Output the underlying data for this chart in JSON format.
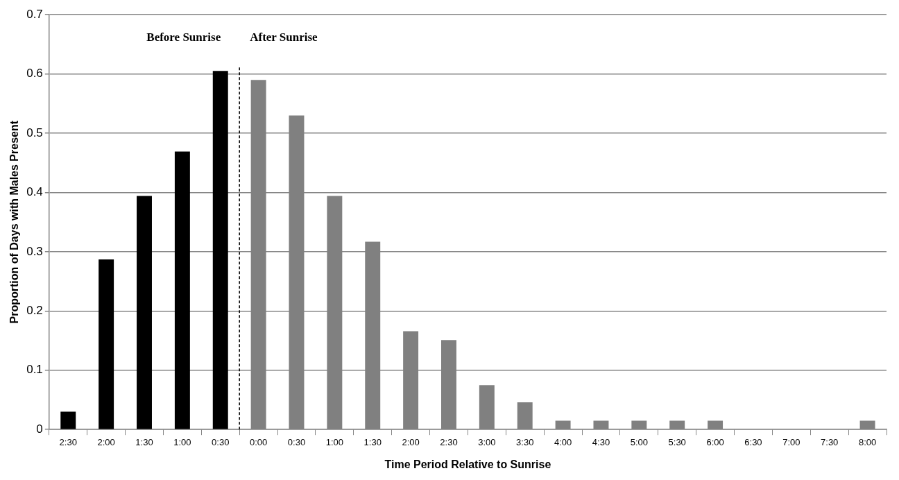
{
  "chart_data": {
    "type": "bar",
    "xlabel": "Time Period Relative to Sunrise",
    "ylabel": "Proportion of Days with Males Present",
    "categories": [
      "2:30",
      "2:00",
      "1:30",
      "1:00",
      "0:30",
      "0:00",
      "0:30",
      "1:00",
      "1:30",
      "2:00",
      "2:30",
      "3:00",
      "3:30",
      "4:00",
      "4:30",
      "5:00",
      "5:30",
      "6:00",
      "6:30",
      "7:00",
      "7:30",
      "8:00"
    ],
    "values": [
      0.03,
      0.287,
      0.394,
      0.469,
      0.605,
      0.59,
      0.53,
      0.394,
      0.317,
      0.166,
      0.151,
      0.075,
      0.046,
      0.015,
      0.015,
      0.015,
      0.015,
      0.015,
      0,
      0,
      0,
      0.015
    ],
    "colors": [
      "#000000",
      "#000000",
      "#000000",
      "#000000",
      "#000000",
      "#808080",
      "#808080",
      "#808080",
      "#808080",
      "#808080",
      "#808080",
      "#808080",
      "#808080",
      "#808080",
      "#808080",
      "#808080",
      "#808080",
      "#808080",
      "#808080",
      "#808080",
      "#808080",
      "#808080"
    ],
    "ylim": [
      0,
      0.7
    ],
    "yticks": [
      0,
      0.1,
      0.2,
      0.3,
      0.4,
      0.5,
      0.6,
      0.7
    ],
    "grid": "y",
    "legend": false,
    "ref_lines": [
      {
        "axis": "x",
        "value": "0:00",
        "color": "#000000",
        "line_style": "dashed"
      }
    ],
    "annotations": [
      "Before Sunrise",
      "After Sunrise"
    ]
  }
}
